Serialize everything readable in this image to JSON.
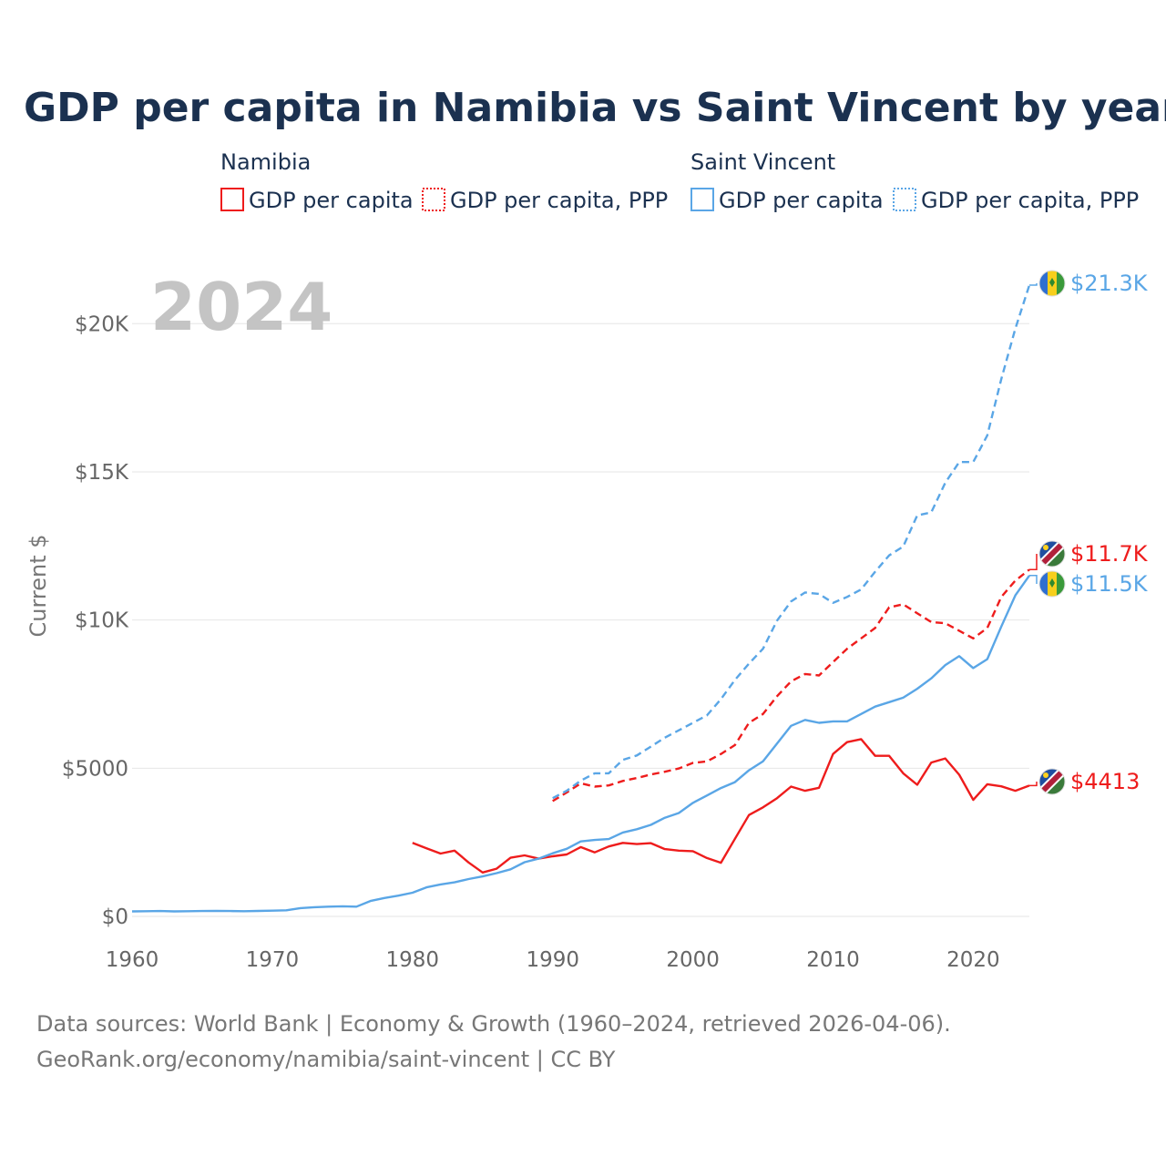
{
  "colors": {
    "namibia": "#ee1c1c",
    "saint_vincent": "#5aa6e6",
    "title": "#1b3150",
    "grid": "#e6e6e6",
    "tick": "#666666",
    "watermark": "#c4c4c4"
  },
  "chart_data": {
    "type": "line",
    "title": "GDP per capita in Namibia vs Saint Vincent by year",
    "watermark_year": "2024",
    "xlabel": "",
    "ylabel": "Current $",
    "xlim": [
      1960,
      2024
    ],
    "ylim": [
      0,
      21300
    ],
    "x_ticks": [
      1960,
      1970,
      1980,
      1990,
      2000,
      2010,
      2020
    ],
    "x_tick_labels": [
      "1960",
      "1970",
      "1980",
      "1990",
      "2000",
      "2010",
      "2020"
    ],
    "y_ticks": [
      0,
      5000,
      10000,
      15000,
      20000
    ],
    "y_tick_labels": [
      "$0",
      "$5000",
      "$10K",
      "$15K",
      "$20K"
    ],
    "grid": true,
    "legend": {
      "groups": [
        {
          "country": "Namibia",
          "items": [
            "GDP per capita",
            "GDP per capita, PPP"
          ]
        },
        {
          "country": "Saint Vincent",
          "items": [
            "GDP per capita",
            "GDP per capita, PPP"
          ]
        }
      ]
    },
    "series": [
      {
        "name": "Namibia GDP per capita",
        "country": "Namibia",
        "style": "solid",
        "end_label": "$4413",
        "x": [
          1980,
          1981,
          1982,
          1983,
          1984,
          1985,
          1986,
          1987,
          1988,
          1989,
          1990,
          1991,
          1992,
          1993,
          1994,
          1995,
          1996,
          1997,
          1998,
          1999,
          2000,
          2001,
          2002,
          2003,
          2004,
          2005,
          2006,
          2007,
          2008,
          2009,
          2010,
          2011,
          2012,
          2013,
          2014,
          2015,
          2016,
          2017,
          2018,
          2019,
          2020,
          2021,
          2022,
          2023,
          2024
        ],
        "values": [
          2480,
          2300,
          2120,
          2220,
          1820,
          1480,
          1610,
          1980,
          2060,
          1950,
          2030,
          2090,
          2340,
          2160,
          2360,
          2480,
          2440,
          2470,
          2270,
          2220,
          2200,
          1970,
          1810,
          2620,
          3420,
          3680,
          3990,
          4380,
          4240,
          4340,
          5480,
          5880,
          5980,
          5420,
          5420,
          4830,
          4440,
          5190,
          5330,
          4780,
          3930,
          4460,
          4390,
          4240,
          4413
        ]
      },
      {
        "name": "Namibia GDP per capita, PPP",
        "country": "Namibia",
        "style": "dashed",
        "end_label": "$11.7K",
        "x": [
          1990,
          1991,
          1992,
          1993,
          1994,
          1995,
          1996,
          1997,
          1998,
          1999,
          2000,
          2001,
          2002,
          2003,
          2004,
          2005,
          2006,
          2007,
          2008,
          2009,
          2010,
          2011,
          2012,
          2013,
          2014,
          2015,
          2016,
          2017,
          2018,
          2019,
          2020,
          2021,
          2022,
          2023,
          2024
        ],
        "values": [
          3890,
          4180,
          4490,
          4380,
          4420,
          4570,
          4670,
          4790,
          4880,
          4990,
          5180,
          5230,
          5480,
          5780,
          6530,
          6830,
          7430,
          7930,
          8180,
          8130,
          8580,
          9030,
          9380,
          9730,
          10430,
          10530,
          10230,
          9930,
          9890,
          9640,
          9380,
          9730,
          10780,
          11330,
          11700
        ]
      },
      {
        "name": "Saint Vincent GDP per capita",
        "country": "Saint Vincent",
        "style": "solid",
        "end_label": "$11.5K",
        "x": [
          1960,
          1961,
          1962,
          1963,
          1964,
          1965,
          1966,
          1967,
          1968,
          1969,
          1970,
          1971,
          1972,
          1973,
          1974,
          1975,
          1976,
          1977,
          1978,
          1979,
          1980,
          1981,
          1982,
          1983,
          1984,
          1985,
          1986,
          1987,
          1988,
          1989,
          1990,
          1991,
          1992,
          1993,
          1994,
          1995,
          1996,
          1997,
          1998,
          1999,
          2000,
          2001,
          2002,
          2003,
          2004,
          2005,
          2006,
          2007,
          2008,
          2009,
          2010,
          2011,
          2012,
          2013,
          2014,
          2015,
          2016,
          2017,
          2018,
          2019,
          2020,
          2021,
          2022,
          2023,
          2024
        ],
        "values": [
          170,
          175,
          180,
          170,
          175,
          180,
          185,
          180,
          175,
          185,
          195,
          205,
          280,
          310,
          330,
          340,
          330,
          520,
          620,
          700,
          800,
          980,
          1080,
          1150,
          1260,
          1350,
          1460,
          1590,
          1830,
          1950,
          2130,
          2280,
          2530,
          2580,
          2610,
          2830,
          2940,
          3090,
          3330,
          3490,
          3830,
          4080,
          4330,
          4530,
          4930,
          5230,
          5830,
          6430,
          6630,
          6530,
          6580,
          6580,
          6830,
          7080,
          7230,
          7380,
          7680,
          8030,
          8480,
          8780,
          8380,
          8680,
          9780,
          10830,
          11500
        ]
      },
      {
        "name": "Saint Vincent GDP per capita, PPP",
        "country": "Saint Vincent",
        "style": "dashed",
        "end_label": "$21.3K",
        "x": [
          1990,
          1991,
          1992,
          1993,
          1994,
          1995,
          1996,
          1997,
          1998,
          1999,
          2000,
          2001,
          2002,
          2003,
          2004,
          2005,
          2006,
          2007,
          2008,
          2009,
          2010,
          2011,
          2012,
          2013,
          2014,
          2015,
          2016,
          2017,
          2018,
          2019,
          2020,
          2021,
          2022,
          2023,
          2024
        ],
        "values": [
          3990,
          4240,
          4580,
          4830,
          4830,
          5280,
          5430,
          5730,
          6030,
          6280,
          6530,
          6780,
          7330,
          7980,
          8530,
          9030,
          9980,
          10630,
          10930,
          10880,
          10580,
          10780,
          11030,
          11630,
          12180,
          12480,
          13530,
          13630,
          14630,
          15330,
          15330,
          16230,
          18130,
          19830,
          21300
        ]
      }
    ]
  },
  "source": {
    "line1": "Data sources: World Bank | Economy & Growth (1960–2024, retrieved 2026-04-06).",
    "line2": "GeoRank.org/economy/namibia/saint-vincent | CC BY"
  }
}
